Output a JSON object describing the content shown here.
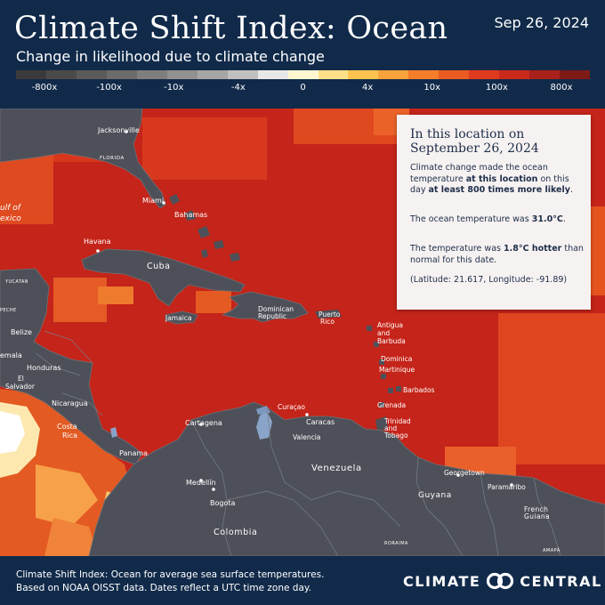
{
  "header": {
    "title": "Climate Shift Index: Ocean",
    "subtitle": "Change in likelihood due to climate change",
    "date": "Sep 26, 2024"
  },
  "legend": {
    "colors": [
      "#3a3a3a",
      "#4a4a4a",
      "#5a5a5a",
      "#6b6b6b",
      "#7e7e7e",
      "#919191",
      "#a6a6a6",
      "#c0c0c0",
      "#e8e8e8",
      "#fff7d0",
      "#ffe08a",
      "#fec44f",
      "#f9a33a",
      "#f47d2a",
      "#ea5b22",
      "#de3a1e",
      "#c92a1c",
      "#a8211a",
      "#7e1a16"
    ],
    "labels": [
      "-800x",
      "-100x",
      "-10x",
      "-4x",
      "0",
      "4x",
      "10x",
      "100x",
      "800x"
    ]
  },
  "info_panel": {
    "heading": "In this location on September 26, 2024",
    "p1_a": "Climate change made the ocean temperature ",
    "p1_b": "at this location",
    "p1_c": " on this day ",
    "p1_d": "at least 800 times more likely",
    "p1_e": ".",
    "p2_a": "The ocean temperature was ",
    "p2_b": "31.0°C",
    "p2_c": ".",
    "p3_a": "The temperature was ",
    "p3_b": "1.8°C hotter",
    "p3_c": " than normal for this date.",
    "p4": "(Latitude: 21.617, Longitude: -91.89)"
  },
  "map_labels": {
    "jacksonville": "Jacksonville",
    "florida": "FLORIDA",
    "miami": "Miami",
    "bahamas": "Bahamas",
    "gulf1": "ulf of",
    "gulf2": "exico",
    "havana": "Havana",
    "cuba": "Cuba",
    "yucatan": "YUCATAN",
    "peche": "PECHE",
    "jamaica": "Jamaica",
    "dominican1": "Dominican",
    "dominican2": "Republic",
    "puerto1": "Puerto",
    "puerto2": "Rico",
    "antigua1": "Antigua",
    "antigua2": "and",
    "antigua3": "Barbuda",
    "dominica": "Dominica",
    "martinique": "Martinique",
    "barbados": "Barbados",
    "grenada": "Grenada",
    "trinidad1": "Trinidad",
    "trinidad2": "and",
    "trinidad3": "Tobago",
    "belize": "Belize",
    "guatemala": "emala",
    "honduras": "Honduras",
    "salvador1": "El",
    "salvador2": "Salvador",
    "nicaragua": "Nicaragua",
    "costa1": "Costa",
    "costa2": "Rica",
    "panama": "Panama",
    "curacao": "Curaçao",
    "caracas": "Caracas",
    "valencia": "Valencia",
    "cartagena": "Cartagena",
    "venezuela": "Venezuela",
    "medellin": "Medellín",
    "bogota": "Bogota",
    "colombia": "Colombia",
    "georgetown": "Georgetown",
    "paramaribo": "Paramaribo",
    "guyana": "Guyana",
    "french1": "French",
    "french2": "Guiana",
    "roraima": "RORAIMA",
    "amapa": "AMAPÁ"
  },
  "footer": {
    "line1": "Climate Shift Index: Ocean for average sea surface temperatures.",
    "line2": "Based on NOAA OISST data. Dates reflect a UTC time zone day.",
    "brand_left": "CLIMATE",
    "brand_right": "CENTRAL"
  }
}
